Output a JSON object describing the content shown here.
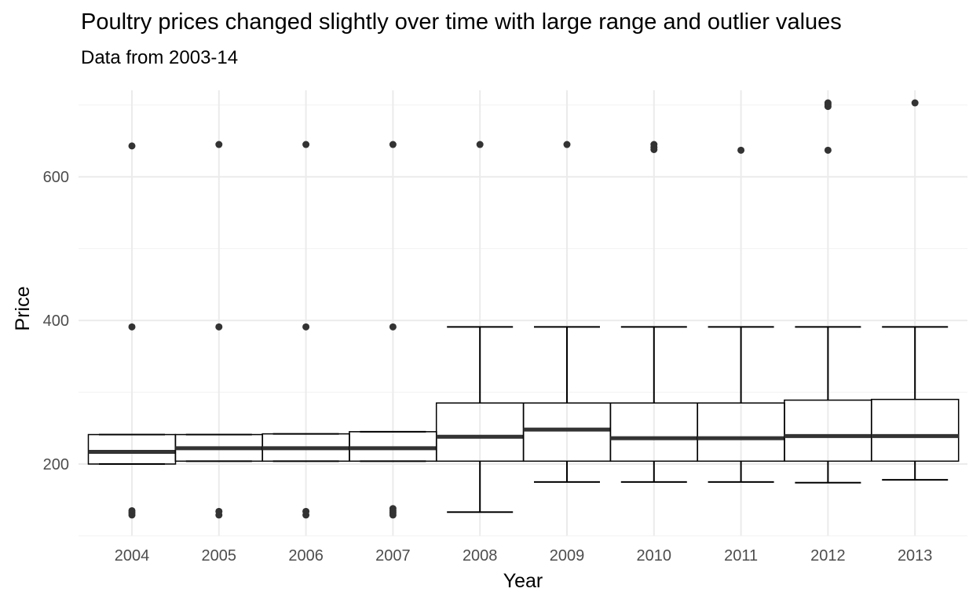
{
  "chart_data": {
    "type": "boxplot",
    "title": "Poultry prices changed slightly over time with large range and outlier values",
    "subtitle": "Data from 2003-14",
    "xlabel": "Year",
    "ylabel": "Price",
    "ylim": [
      100,
      720
    ],
    "y_ticks": [
      200,
      400,
      600
    ],
    "grid": "on",
    "categories": [
      "2004",
      "2005",
      "2006",
      "2007",
      "2008",
      "2009",
      "2010",
      "2011",
      "2012",
      "2013"
    ],
    "boxes": [
      {
        "category": "2004",
        "whisker_low": 200,
        "q1": 200,
        "median": 217,
        "q3": 241,
        "whisker_high": 241,
        "outliers": [
          129,
          132,
          135,
          391,
          643
        ]
      },
      {
        "category": "2005",
        "whisker_low": 204,
        "q1": 204,
        "median": 222,
        "q3": 241,
        "whisker_high": 241,
        "outliers": [
          129,
          134,
          391,
          645
        ]
      },
      {
        "category": "2006",
        "whisker_low": 204,
        "q1": 204,
        "median": 222,
        "q3": 242,
        "whisker_high": 242,
        "outliers": [
          129,
          134,
          391,
          645
        ]
      },
      {
        "category": "2007",
        "whisker_low": 204,
        "q1": 204,
        "median": 222,
        "q3": 245,
        "whisker_high": 245,
        "outliers": [
          129,
          132,
          135,
          138,
          391,
          645
        ]
      },
      {
        "category": "2008",
        "whisker_low": 133,
        "q1": 204,
        "median": 238,
        "q3": 285,
        "whisker_high": 391,
        "outliers": [
          645
        ]
      },
      {
        "category": "2009",
        "whisker_low": 175,
        "q1": 204,
        "median": 248,
        "q3": 285,
        "whisker_high": 391,
        "outliers": [
          645
        ]
      },
      {
        "category": "2010",
        "whisker_low": 175,
        "q1": 204,
        "median": 236,
        "q3": 285,
        "whisker_high": 391,
        "outliers": [
          638,
          641,
          645
        ]
      },
      {
        "category": "2011",
        "whisker_low": 175,
        "q1": 204,
        "median": 236,
        "q3": 285,
        "whisker_high": 391,
        "outliers": [
          637
        ]
      },
      {
        "category": "2012",
        "whisker_low": 174,
        "q1": 204,
        "median": 239,
        "q3": 289,
        "whisker_high": 391,
        "outliers": [
          637,
          698,
          701,
          703
        ]
      },
      {
        "category": "2013",
        "whisker_low": 178,
        "q1": 204,
        "median": 239,
        "q3": 290,
        "whisker_high": 391,
        "outliers": [
          703
        ]
      }
    ]
  }
}
